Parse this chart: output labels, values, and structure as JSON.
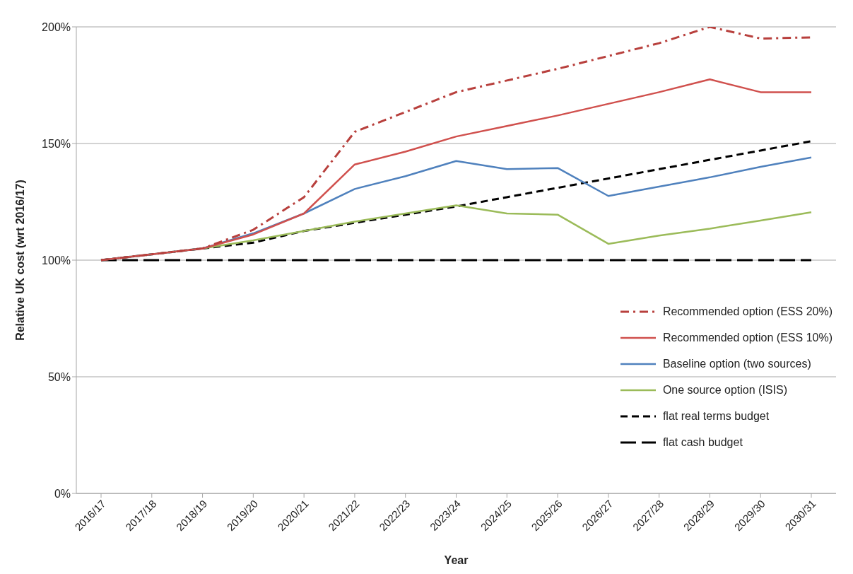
{
  "chart_data": {
    "type": "line",
    "xlabel": "Year",
    "ylabel": "Relative UK cost (wrt 2016/17)",
    "categories": [
      "2016/17",
      "2017/18",
      "2018/19",
      "2019/20",
      "2020/21",
      "2021/22",
      "2022/23",
      "2023/24",
      "2024/25",
      "2025/26",
      "2026/27",
      "2027/28",
      "2028/29",
      "2029/30",
      "2030/31"
    ],
    "series": [
      {
        "name": "Recommended option (ESS 20%)",
        "color": "#b8403d",
        "line_style": "dashdot",
        "values": [
          100,
          102.5,
          105,
          113,
          127,
          155,
          163.5,
          172,
          177,
          182,
          187.5,
          193,
          200,
          195,
          195.5
        ]
      },
      {
        "name": "Recommended option (ESS 10%)",
        "color": "#d0504d",
        "line_style": "solid",
        "values": [
          100,
          102.5,
          105,
          111,
          120,
          141,
          146.5,
          153,
          157.5,
          162,
          167,
          172,
          177.5,
          172,
          172
        ]
      },
      {
        "name": "Baseline option (two sources)",
        "color": "#4f81bd",
        "line_style": "solid",
        "values": [
          100,
          102.5,
          105,
          111.5,
          120,
          130.5,
          136,
          142.5,
          139,
          139.5,
          127.5,
          131.5,
          135.5,
          140,
          144
        ]
      },
      {
        "name": "One source option (ISIS)",
        "color": "#9bbb59",
        "line_style": "solid",
        "values": [
          100,
          102.5,
          105,
          108.5,
          112.5,
          116.5,
          120,
          123.5,
          120,
          119.5,
          107,
          110.5,
          113.5,
          117,
          120.5
        ]
      },
      {
        "name": "flat real terms budget",
        "color": "#000000",
        "line_style": "dashed",
        "values": [
          100,
          102.5,
          105,
          107.5,
          112.5,
          116,
          119.5,
          123,
          127,
          131,
          135,
          139,
          143,
          147,
          151
        ]
      },
      {
        "name": "flat cash budget",
        "color": "#000000",
        "line_style": "longdash",
        "values": [
          100,
          100,
          100,
          100,
          100,
          100,
          100,
          100,
          100,
          100,
          100,
          100,
          100,
          100,
          100
        ]
      }
    ],
    "ylim": [
      0,
      200
    ],
    "yticks": [
      {
        "value": 0,
        "label": "0%"
      },
      {
        "value": 50,
        "label": "50%"
      },
      {
        "value": 100,
        "label": "100%"
      },
      {
        "value": 150,
        "label": "150%"
      },
      {
        "value": 200,
        "label": "200%"
      }
    ],
    "grid": "y",
    "legend": "right",
    "marker": "none"
  }
}
